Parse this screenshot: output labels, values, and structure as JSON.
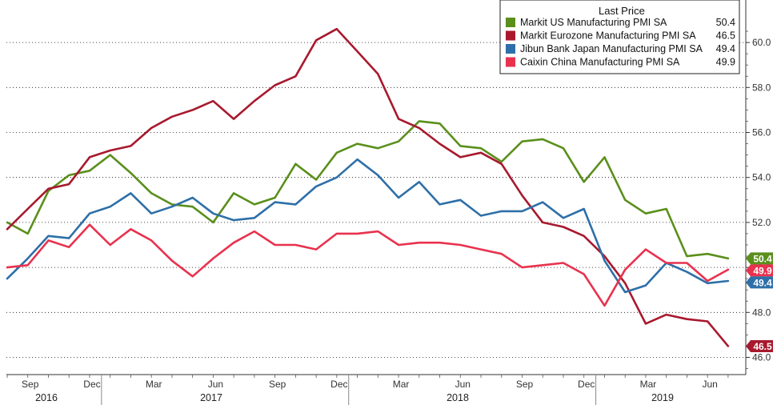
{
  "chart_data": {
    "type": "line",
    "title": "",
    "xlabel": "",
    "ylabel": "",
    "ylim": [
      45.3,
      62.5
    ],
    "y_ticks": [
      "46.0",
      "48.0",
      "50.0",
      "52.0",
      "54.0",
      "56.0",
      "58.0",
      "60.0"
    ],
    "grid": true,
    "legend_position": "top-right",
    "legend_title": "Last Price",
    "x_tick_labels": [
      "Sep",
      "Dec",
      "Mar",
      "Jun",
      "Sep",
      "Dec",
      "Mar",
      "Jun",
      "Sep",
      "Dec",
      "Mar",
      "Jun"
    ],
    "x_year_labels": [
      "2016",
      "2017",
      "2018",
      "2019"
    ],
    "x": [
      "2016-08",
      "2016-09",
      "2016-10",
      "2016-11",
      "2016-12",
      "2017-01",
      "2017-02",
      "2017-03",
      "2017-04",
      "2017-05",
      "2017-06",
      "2017-07",
      "2017-08",
      "2017-09",
      "2017-10",
      "2017-11",
      "2017-12",
      "2018-01",
      "2018-02",
      "2018-03",
      "2018-04",
      "2018-05",
      "2018-06",
      "2018-07",
      "2018-08",
      "2018-09",
      "2018-10",
      "2018-11",
      "2018-12",
      "2019-01",
      "2019-02",
      "2019-03",
      "2019-04",
      "2019-05",
      "2019-06",
      "2019-07"
    ],
    "series": [
      {
        "name": "Markit US Manufacturing PMI SA",
        "last": "50.4",
        "color": "#5a8f1c",
        "values": [
          52.0,
          51.5,
          53.4,
          54.1,
          54.3,
          55.0,
          54.2,
          53.3,
          52.8,
          52.7,
          52.0,
          53.3,
          52.8,
          53.1,
          54.6,
          53.9,
          55.1,
          55.5,
          55.3,
          55.6,
          56.5,
          56.4,
          55.4,
          55.3,
          54.7,
          55.6,
          55.7,
          55.3,
          53.8,
          54.9,
          53.0,
          52.4,
          52.6,
          50.5,
          50.6,
          50.4
        ]
      },
      {
        "name": "Markit Eurozone Manufacturing PMI SA",
        "last": "46.5",
        "color": "#a8192e",
        "values": [
          51.7,
          52.6,
          53.5,
          53.7,
          54.9,
          55.2,
          55.4,
          56.2,
          56.7,
          57.0,
          57.4,
          56.6,
          57.4,
          58.1,
          58.5,
          60.1,
          60.6,
          59.6,
          58.6,
          56.6,
          56.2,
          55.5,
          54.9,
          55.1,
          54.6,
          53.2,
          52.0,
          51.8,
          51.4,
          50.5,
          49.3,
          47.5,
          47.9,
          47.7,
          47.6,
          46.5
        ]
      },
      {
        "name": "Jibun Bank Japan Manufacturing PMI SA",
        "last": "49.4",
        "color": "#2e6fa8",
        "values": [
          49.5,
          50.4,
          51.4,
          51.3,
          52.4,
          52.7,
          53.3,
          52.4,
          52.7,
          53.1,
          52.4,
          52.1,
          52.2,
          52.9,
          52.8,
          53.6,
          54.0,
          54.8,
          54.1,
          53.1,
          53.8,
          52.8,
          53.0,
          52.3,
          52.5,
          52.5,
          52.9,
          52.2,
          52.6,
          50.3,
          48.9,
          49.2,
          50.2,
          49.8,
          49.3,
          49.4
        ]
      },
      {
        "name": "Caixin China Manufacturing PMI SA",
        "last": "49.9",
        "color": "#e8324e",
        "values": [
          50.0,
          50.1,
          51.2,
          50.9,
          51.9,
          51.0,
          51.7,
          51.2,
          50.3,
          49.6,
          50.4,
          51.1,
          51.6,
          51.0,
          51.0,
          50.8,
          51.5,
          51.5,
          51.6,
          51.0,
          51.1,
          51.1,
          51.0,
          50.8,
          50.6,
          50.0,
          50.1,
          50.2,
          49.7,
          48.3,
          49.9,
          50.8,
          50.2,
          50.2,
          49.4,
          49.9
        ]
      }
    ]
  }
}
